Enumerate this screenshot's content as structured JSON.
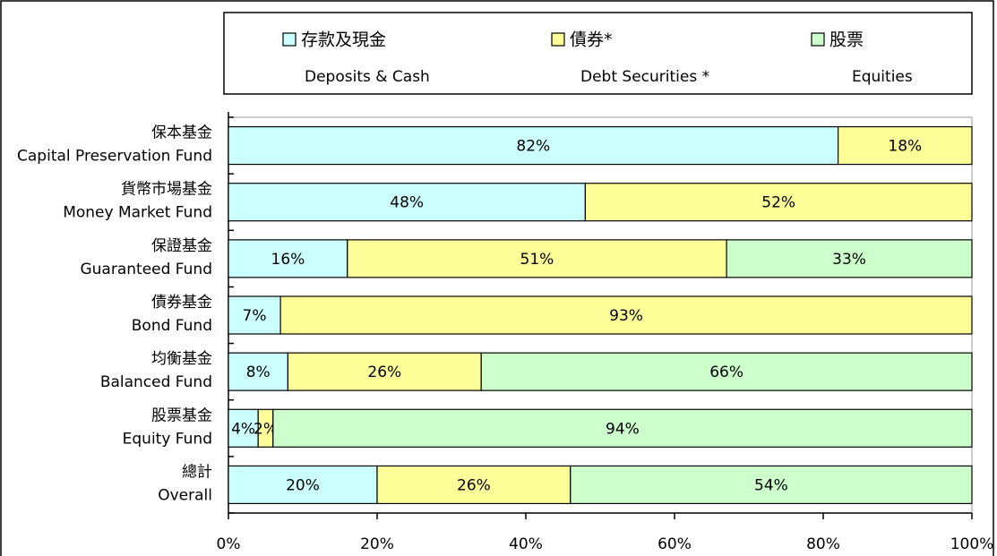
{
  "chart_data": {
    "type": "stacked-bar-horizontal",
    "categories": [
      [
        "保本基金",
        "Capital Preservation Fund"
      ],
      [
        "貨幣市場基金",
        "Money Market Fund"
      ],
      [
        "保證基金",
        "Guaranteed Fund"
      ],
      [
        "債券基金",
        "Bond Fund"
      ],
      [
        "均衡基金",
        "Balanced Fund"
      ],
      [
        "股票基金",
        "Equity Fund"
      ],
      [
        "總計",
        "Overall"
      ]
    ],
    "series": [
      {
        "name": "存款及現金",
        "name_en": "Deposits & Cash",
        "color": "#ccffff",
        "values": [
          82,
          48,
          16,
          7,
          8,
          4,
          20
        ],
        "value_labels": [
          "82%",
          "48%",
          "16%",
          "7%",
          "8%",
          "4%",
          "20%"
        ]
      },
      {
        "name": "債券*",
        "name_en": "Debt Securities *",
        "color": "#ffff99",
        "values": [
          18,
          52,
          51,
          93,
          26,
          2,
          26
        ],
        "value_labels": [
          "18%",
          "52%",
          "51%",
          "93%",
          "26%",
          "2%",
          "26%"
        ]
      },
      {
        "name": "股票",
        "name_en": "Equities",
        "color": "#ccffcc",
        "values": [
          null,
          null,
          33,
          null,
          66,
          94,
          54
        ],
        "value_labels": [
          null,
          null,
          "33%",
          null,
          "66%",
          "94%",
          "54%"
        ]
      }
    ],
    "xlim": [
      0,
      100
    ],
    "xticks": [
      {
        "value": 0,
        "label": "0%"
      },
      {
        "value": 20,
        "label": "20%"
      },
      {
        "value": 40,
        "label": "40%"
      },
      {
        "value": 60,
        "label": "60%"
      },
      {
        "value": 80,
        "label": "80%"
      },
      {
        "value": 100,
        "label": "100%"
      }
    ]
  }
}
